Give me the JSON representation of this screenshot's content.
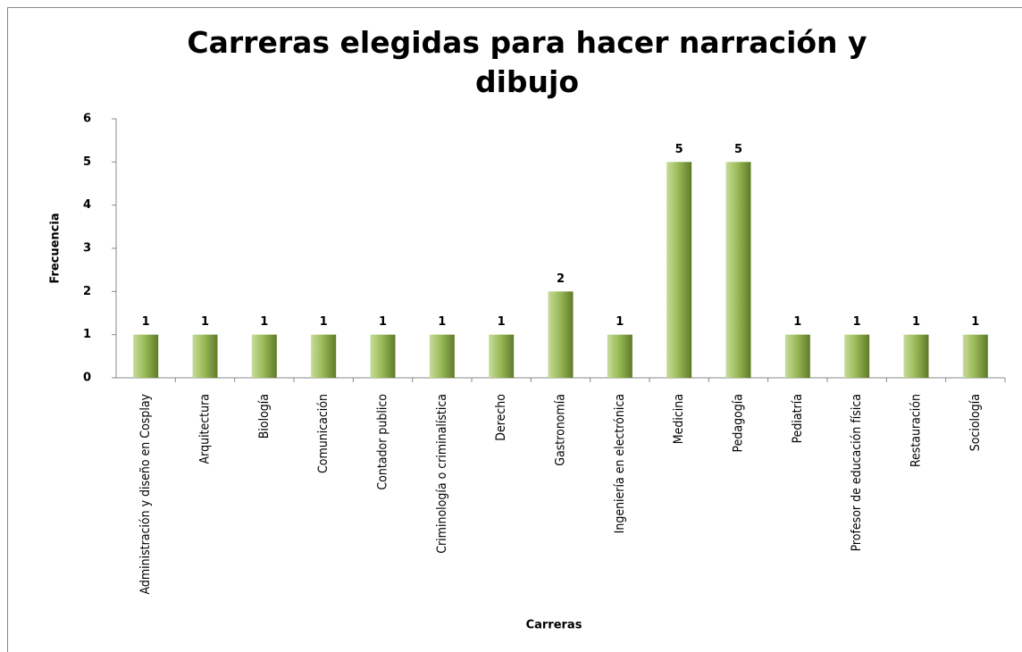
{
  "chart_data": {
    "type": "bar",
    "title": "Carreras elegidas para hacer narración y dibujo",
    "x_label": "Carreras",
    "y_label": "Frecuencia",
    "categories": [
      "Administración y diseño en Cosplay",
      "Arquitectura",
      "Biología",
      "Comunicación",
      "Contador publico",
      "Criminología o criminalística",
      "Derecho",
      "Gastronomía",
      "Ingeniería en electrónica",
      "Medicina",
      "Pedagogía",
      "Pediatría",
      "Profesor de educación física",
      "Restauración",
      "Sociología"
    ],
    "values": [
      1,
      1,
      1,
      1,
      1,
      1,
      1,
      2,
      1,
      5,
      5,
      1,
      1,
      1,
      1
    ],
    "color": "#9bbb59",
    "ylim": [
      0,
      6
    ],
    "yticks": [
      0,
      1,
      2,
      3,
      4,
      5,
      6
    ],
    "grid": false
  }
}
